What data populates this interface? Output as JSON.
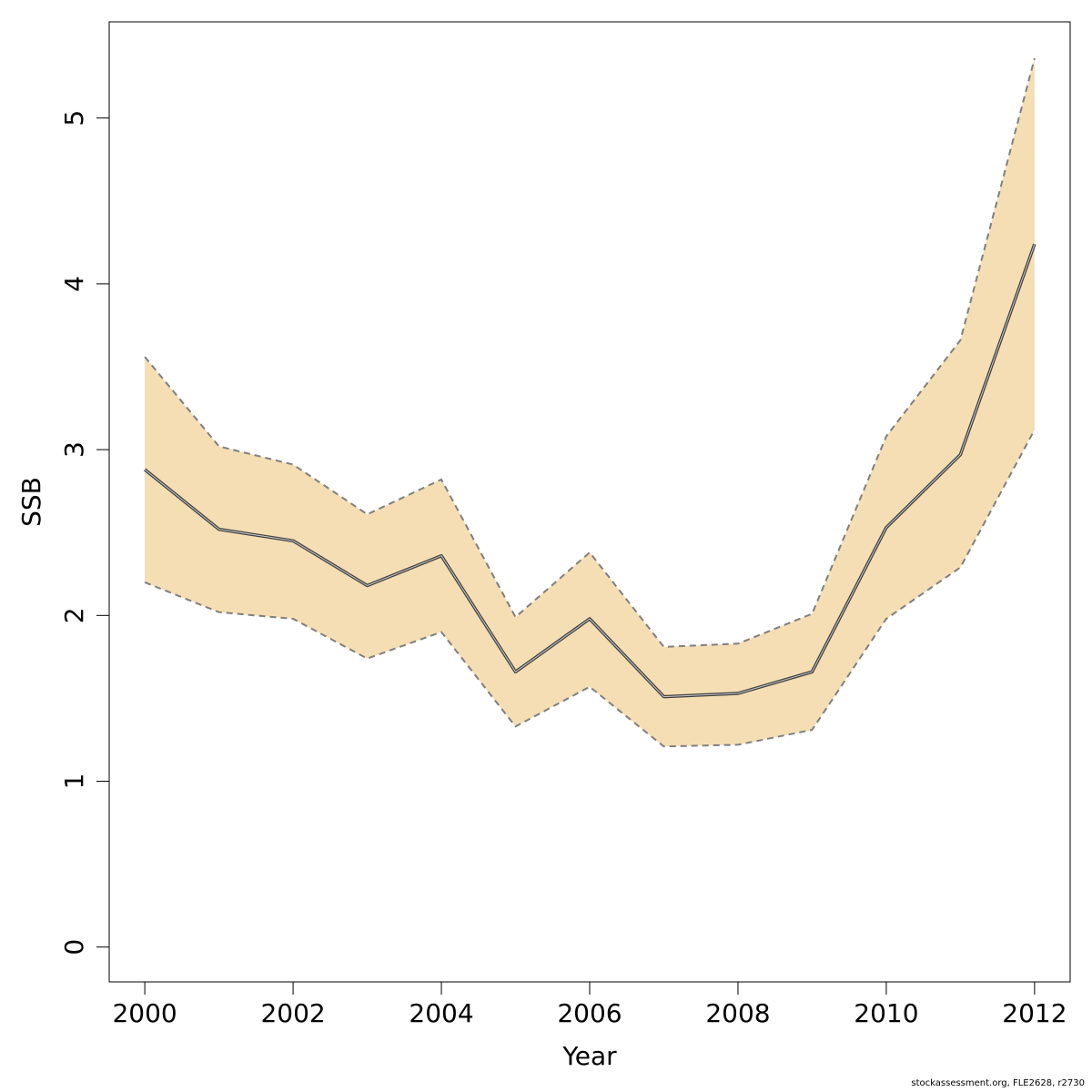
{
  "chart_data": {
    "type": "area",
    "title": "",
    "xlabel": "Year",
    "ylabel": "SSB",
    "xlim": [
      1999.52,
      2012.48
    ],
    "ylim": [
      -0.21,
      5.58
    ],
    "x_ticks": [
      "2000",
      "2002",
      "2004",
      "2006",
      "2008",
      "2010",
      "2012"
    ],
    "y_ticks": [
      "0",
      "1",
      "2",
      "3",
      "4",
      "5"
    ],
    "grid": false,
    "x": [
      2000,
      2001,
      2002,
      2003,
      2004,
      2005,
      2006,
      2007,
      2008,
      2009,
      2010,
      2011,
      2012
    ],
    "series": [
      {
        "role": "estimate",
        "values": [
          2.88,
          2.52,
          2.45,
          2.18,
          2.36,
          1.66,
          1.98,
          1.51,
          1.53,
          1.66,
          2.53,
          2.97,
          4.24
        ]
      },
      {
        "role": "upper",
        "values": [
          3.56,
          3.02,
          2.91,
          2.61,
          2.82,
          1.99,
          2.38,
          1.81,
          1.83,
          2.01,
          3.08,
          3.66,
          5.36
        ]
      },
      {
        "role": "lower",
        "values": [
          2.2,
          2.02,
          1.98,
          1.74,
          1.9,
          1.33,
          1.57,
          1.21,
          1.22,
          1.31,
          1.98,
          2.29,
          3.12
        ]
      }
    ],
    "colors": {
      "band": "#f5deb3",
      "band_edge": "#7f7f7f",
      "line": "#404040",
      "axis": "#000000"
    }
  },
  "footer": {
    "note": "stockassessment.org, FLE2628, r2730"
  }
}
